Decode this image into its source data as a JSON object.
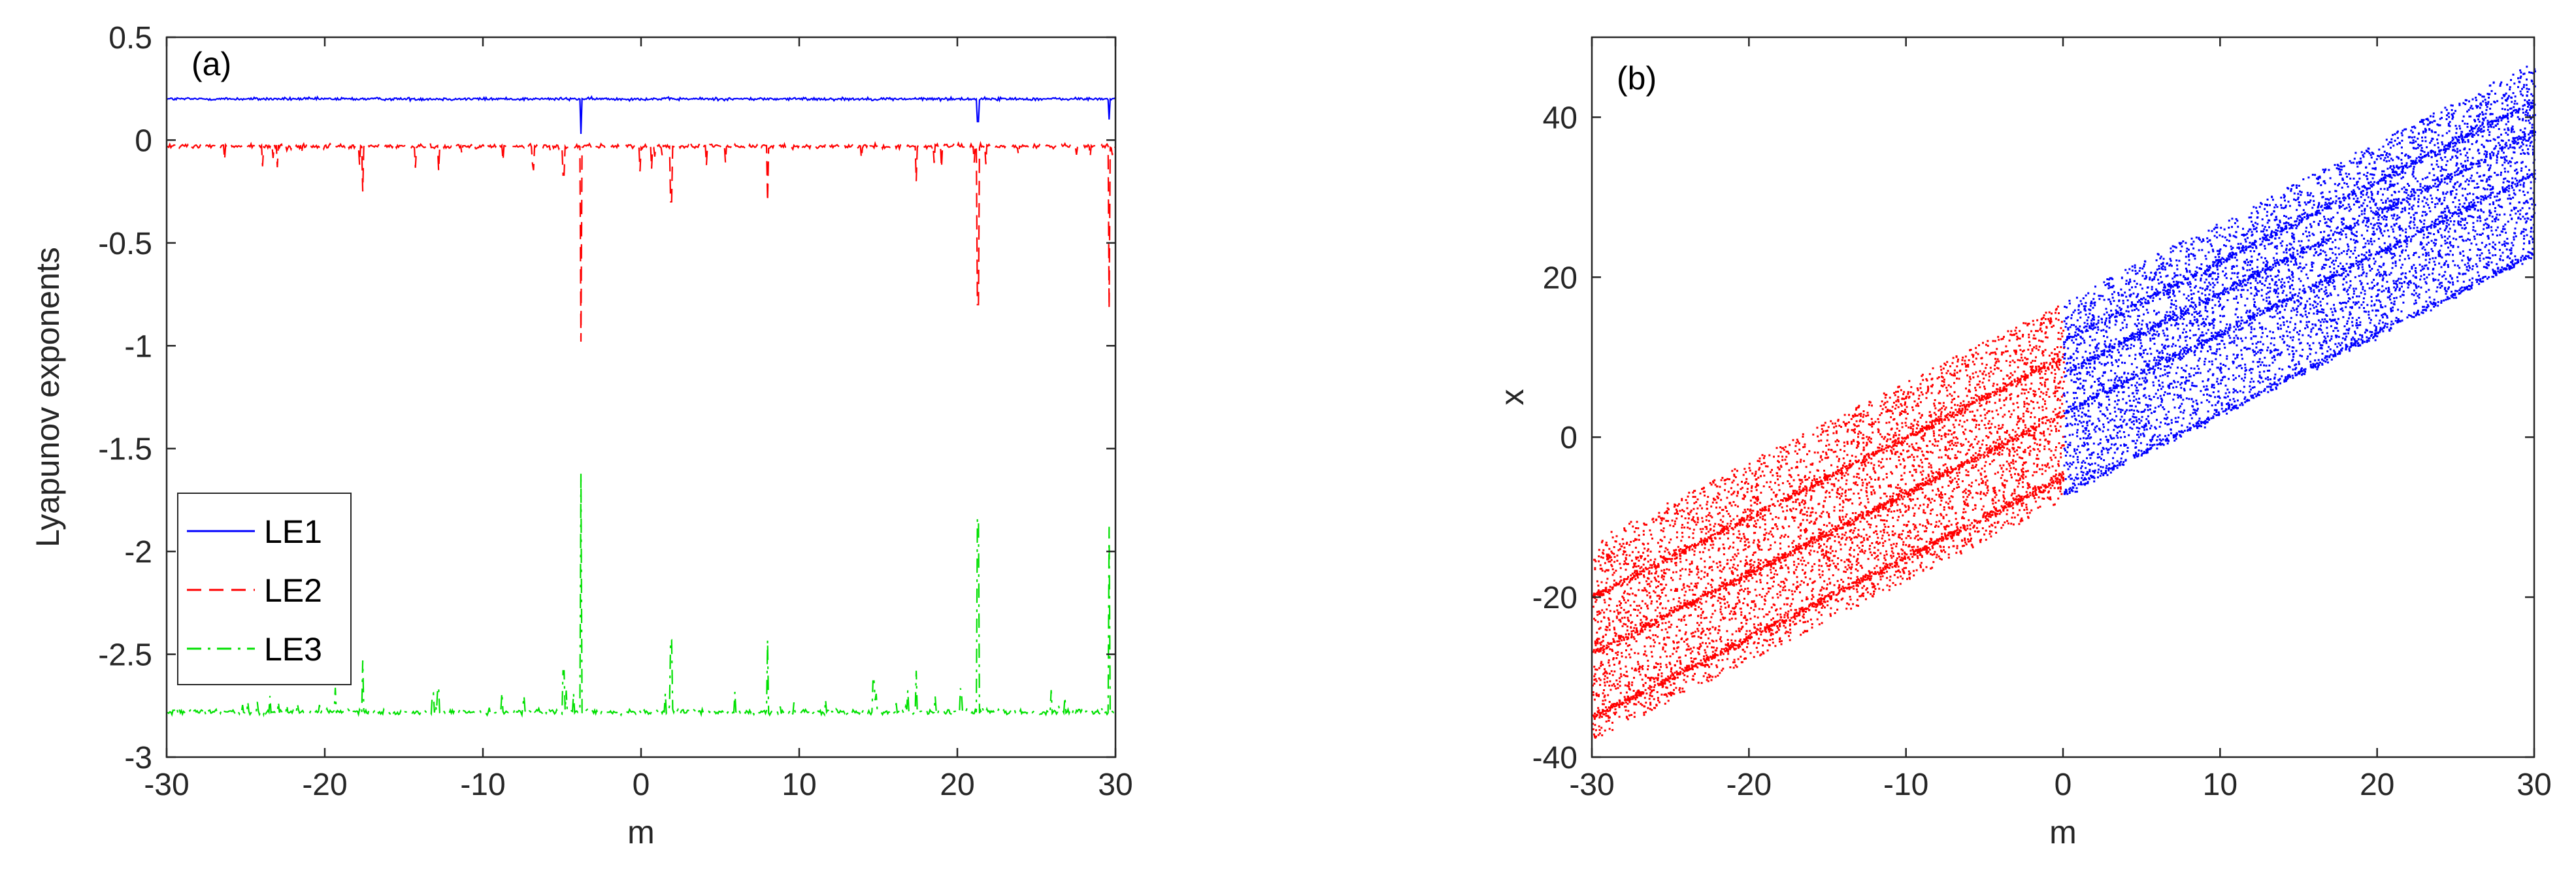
{
  "chart_data": [
    {
      "panel_tag": "(a)",
      "type": "line",
      "xlabel": "m",
      "ylabel": "Lyapunov exponents",
      "xlim": [
        -30,
        30
      ],
      "ylim": [
        -3,
        0.5
      ],
      "xticks": [
        "-30",
        "-20",
        "-10",
        "0",
        "10",
        "20",
        "30"
      ],
      "yticks": [
        "0.5",
        "0",
        "-0.5",
        "-1",
        "-1.5",
        "-2",
        "-2.5",
        "-3"
      ],
      "legend_position": "bottom-left",
      "series": [
        {
          "name": "LE1",
          "color": "#0000ff",
          "style": "solid",
          "baseline": 0.2,
          "spikes": [
            [
              -3.8,
              0.03
            ],
            [
              21.3,
              0.09
            ],
            [
              29.6,
              0.1
            ]
          ]
        },
        {
          "name": "LE2",
          "color": "#ff0000",
          "style": "dashed",
          "baseline": -0.03,
          "spikes": [
            [
              -17.6,
              -0.25
            ],
            [
              -12.8,
              -0.15
            ],
            [
              -4.9,
              -0.17
            ],
            [
              -3.8,
              -0.98
            ],
            [
              1.9,
              -0.3
            ],
            [
              8.0,
              -0.3
            ],
            [
              17.4,
              -0.2
            ],
            [
              21.3,
              -0.8
            ],
            [
              29.6,
              -0.82
            ]
          ]
        },
        {
          "name": "LE3",
          "color": "#00e000",
          "style": "dashdot",
          "baseline": -2.78,
          "spikes": [
            [
              -17.6,
              -2.53
            ],
            [
              -12.8,
              -2.66
            ],
            [
              -4.9,
              -2.58
            ],
            [
              -3.8,
              -1.62
            ],
            [
              1.9,
              -2.43
            ],
            [
              8.0,
              -2.43
            ],
            [
              14.7,
              -2.63
            ],
            [
              17.4,
              -2.58
            ],
            [
              21.3,
              -1.84
            ],
            [
              29.6,
              -1.88
            ]
          ]
        }
      ]
    },
    {
      "panel_tag": "(b)",
      "type": "scatter",
      "xlabel": "m",
      "ylabel": "x",
      "xlim": [
        -30,
        30
      ],
      "ylim": [
        -40,
        50
      ],
      "xticks": [
        "-30",
        "-20",
        "-10",
        "0",
        "10",
        "20",
        "30"
      ],
      "yticks": [
        "40",
        "20",
        "0",
        "-20",
        "-40"
      ],
      "band_slope": 1,
      "series": [
        {
          "range": [
            -30,
            0
          ],
          "color": "#ff0000",
          "band_low_intercept": -8,
          "band_high_intercept": 17,
          "density_lines_intercept": [
            10,
            3,
            -5
          ]
        },
        {
          "range": [
            0,
            30
          ],
          "color": "#0000ff",
          "band_low_intercept": -7,
          "band_high_intercept": 17,
          "density_lines_intercept": [
            12,
            8,
            3,
            -7
          ]
        }
      ]
    }
  ]
}
